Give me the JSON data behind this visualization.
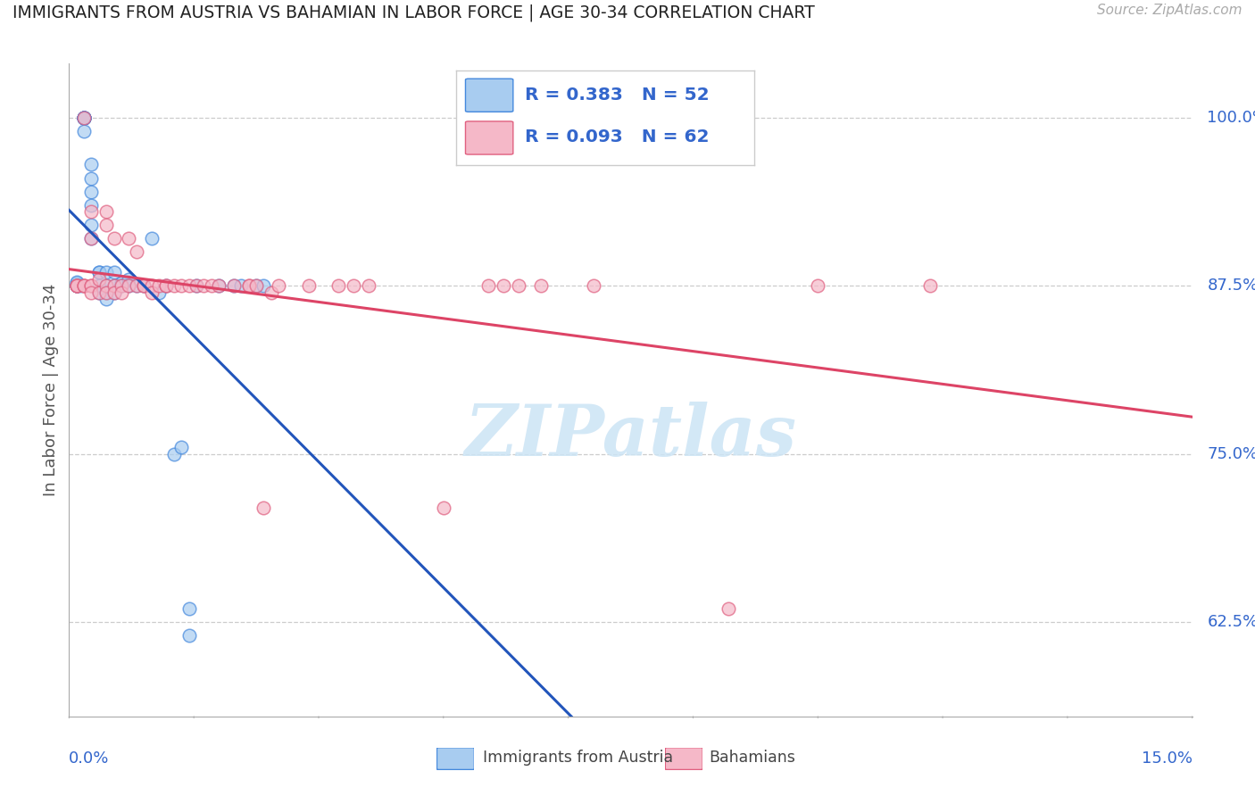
{
  "title": "IMMIGRANTS FROM AUSTRIA VS BAHAMIAN IN LABOR FORCE | AGE 30-34 CORRELATION CHART",
  "source": "Source: ZipAtlas.com",
  "ylabel": "In Labor Force | Age 30-34",
  "ytick_labels": [
    "100.0%",
    "87.5%",
    "75.0%",
    "62.5%"
  ],
  "ytick_values": [
    1.0,
    0.875,
    0.75,
    0.625
  ],
  "xlim": [
    0.0,
    0.15
  ],
  "ylim": [
    0.555,
    1.04
  ],
  "R_austria": 0.383,
  "N_austria": 52,
  "R_bahamian": 0.093,
  "N_bahamian": 62,
  "legend_label_austria": "Immigrants from Austria",
  "legend_label_bahamian": "Bahamians",
  "color_austria_fill": "#a8ccf0",
  "color_austria_edge": "#4488dd",
  "color_bahamian_fill": "#f5b8c8",
  "color_bahamian_edge": "#e06080",
  "color_line_austria": "#2255bb",
  "color_line_bahamian": "#dd4466",
  "color_axis_label": "#3366cc",
  "color_ylabel": "#555555",
  "watermark_color": "#cce4f5",
  "austria_x": [
    0.001,
    0.001,
    0.001,
    0.001,
    0.001,
    0.001,
    0.0015,
    0.002,
    0.002,
    0.002,
    0.002,
    0.002,
    0.002,
    0.002,
    0.002,
    0.002,
    0.003,
    0.003,
    0.003,
    0.003,
    0.003,
    0.003,
    0.004,
    0.004,
    0.004,
    0.004,
    0.005,
    0.005,
    0.005,
    0.005,
    0.006,
    0.006,
    0.006,
    0.007,
    0.007,
    0.008,
    0.008,
    0.009,
    0.01,
    0.011,
    0.012,
    0.013,
    0.014,
    0.015,
    0.016,
    0.016,
    0.017,
    0.02,
    0.022,
    0.023,
    0.025,
    0.026
  ],
  "austria_y": [
    0.875,
    0.875,
    0.875,
    0.876,
    0.877,
    0.878,
    0.875,
    1.0,
    1.0,
    1.0,
    1.0,
    1.0,
    1.0,
    1.0,
    1.0,
    0.99,
    0.965,
    0.955,
    0.945,
    0.935,
    0.92,
    0.91,
    0.885,
    0.885,
    0.875,
    0.87,
    0.885,
    0.875,
    0.87,
    0.865,
    0.885,
    0.875,
    0.87,
    0.877,
    0.875,
    0.88,
    0.875,
    0.875,
    0.875,
    0.91,
    0.87,
    0.875,
    0.75,
    0.755,
    0.635,
    0.615,
    0.875,
    0.875,
    0.875,
    0.875,
    0.875,
    0.875
  ],
  "bahamian_x": [
    0.001,
    0.001,
    0.001,
    0.001,
    0.002,
    0.002,
    0.002,
    0.002,
    0.003,
    0.003,
    0.003,
    0.003,
    0.003,
    0.004,
    0.004,
    0.005,
    0.005,
    0.005,
    0.005,
    0.006,
    0.006,
    0.006,
    0.007,
    0.007,
    0.008,
    0.008,
    0.009,
    0.009,
    0.01,
    0.01,
    0.011,
    0.011,
    0.012,
    0.013,
    0.013,
    0.014,
    0.015,
    0.016,
    0.017,
    0.018,
    0.019,
    0.02,
    0.022,
    0.024,
    0.024,
    0.025,
    0.026,
    0.027,
    0.028,
    0.032,
    0.036,
    0.038,
    0.04,
    0.05,
    0.056,
    0.058,
    0.06,
    0.063,
    0.07,
    0.088,
    0.1,
    0.115
  ],
  "bahamian_y": [
    0.875,
    0.875,
    0.875,
    0.875,
    1.0,
    0.875,
    0.875,
    0.875,
    0.93,
    0.91,
    0.875,
    0.875,
    0.87,
    0.88,
    0.87,
    0.93,
    0.92,
    0.875,
    0.87,
    0.91,
    0.875,
    0.87,
    0.875,
    0.87,
    0.91,
    0.875,
    0.9,
    0.875,
    0.875,
    0.875,
    0.875,
    0.87,
    0.875,
    0.875,
    0.875,
    0.875,
    0.875,
    0.875,
    0.875,
    0.875,
    0.875,
    0.875,
    0.875,
    0.875,
    0.875,
    0.875,
    0.71,
    0.87,
    0.875,
    0.875,
    0.875,
    0.875,
    0.875,
    0.71,
    0.875,
    0.875,
    0.875,
    0.875,
    0.875,
    0.635,
    0.875,
    0.875
  ]
}
